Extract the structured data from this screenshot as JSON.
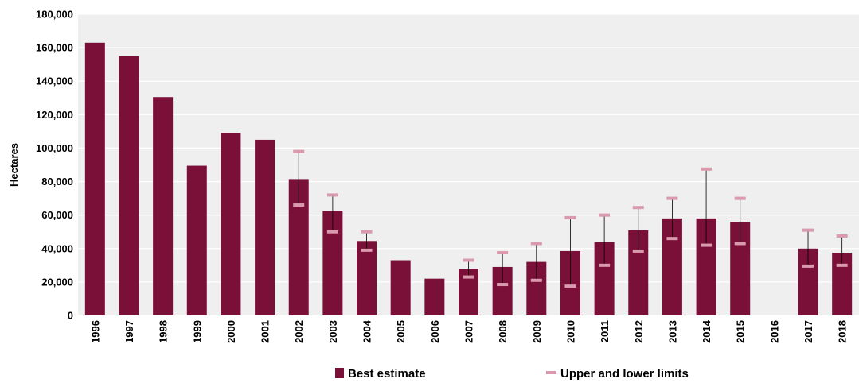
{
  "chart_data": {
    "type": "bar",
    "ylabel": "Hectares",
    "xlabel": "",
    "ylim": [
      0,
      180000
    ],
    "yticks": [
      0,
      20000,
      40000,
      60000,
      80000,
      100000,
      120000,
      140000,
      160000,
      180000
    ],
    "ytick_labels": [
      "0",
      "20,000",
      "40,000",
      "60,000",
      "80,000",
      "100,000",
      "120,000",
      "140,000",
      "160,000",
      "180,000"
    ],
    "grid": true,
    "legend_position": "bottom",
    "colors": {
      "bar": "#7a1038",
      "limit": "#d99aae",
      "whisker": "#000000",
      "plot_bg": "#efefef",
      "grid": "#ffffff"
    },
    "categories": [
      "1996",
      "1997",
      "1998",
      "1999",
      "2000",
      "2001",
      "2002",
      "2003",
      "2004",
      "2005",
      "2006",
      "2007",
      "2008",
      "2009",
      "2010",
      "2011",
      "2012",
      "2013",
      "2014",
      "2015",
      "2016",
      "2017",
      "2018"
    ],
    "series": [
      {
        "name": "Best estimate",
        "values": [
          163000,
          155000,
          130500,
          89500,
          109000,
          105000,
          81500,
          62500,
          44500,
          33000,
          22000,
          28000,
          29000,
          32000,
          38500,
          44000,
          51000,
          58000,
          58000,
          56000,
          null,
          40000,
          37500
        ]
      },
      {
        "name": "Upper and lower limits",
        "upper": [
          null,
          null,
          null,
          null,
          null,
          null,
          98000,
          72000,
          50000,
          null,
          null,
          33000,
          37500,
          43000,
          58500,
          60000,
          64500,
          70000,
          87500,
          70000,
          null,
          51000,
          47500
        ],
        "lower": [
          null,
          null,
          null,
          null,
          null,
          null,
          66000,
          50000,
          39000,
          null,
          null,
          23000,
          18500,
          21000,
          17500,
          30000,
          38500,
          46000,
          42000,
          43000,
          null,
          29500,
          30000
        ]
      }
    ]
  }
}
